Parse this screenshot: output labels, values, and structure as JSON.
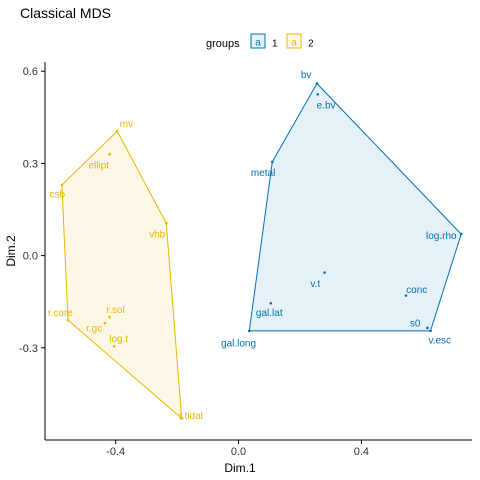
{
  "chart_data": {
    "type": "scatter",
    "title": "Classical MDS",
    "xlabel": "Dim.1",
    "ylabel": "Dim.2",
    "xlim": [
      -0.63,
      0.76
    ],
    "ylim": [
      -0.6,
      0.63
    ],
    "x_ticks": [
      -0.4,
      0.0,
      0.4
    ],
    "y_ticks": [
      -0.3,
      0.0,
      0.3,
      0.6
    ],
    "x_tick_labels": [
      "-0.4",
      "0.0",
      "0.4"
    ],
    "y_tick_labels": [
      "-0.3",
      "0.0",
      "0.3",
      "0.6"
    ],
    "grid": false,
    "legend": {
      "title": "groups",
      "placement": "top",
      "glyph": "a",
      "entries": [
        "1",
        "2"
      ]
    },
    "series": [
      {
        "name": "1",
        "color": "#0072B2",
        "fill": "#0072B2",
        "points": [
          {
            "label": "bv",
            "x": 0.255,
            "y": 0.56,
            "lx": 0.22,
            "ly": 0.59
          },
          {
            "label": "e.bv",
            "x": 0.258,
            "y": 0.525,
            "lx": 0.285,
            "ly": 0.49
          },
          {
            "label": "metal",
            "x": 0.11,
            "y": 0.305,
            "lx": 0.08,
            "ly": 0.27
          },
          {
            "label": "log.rho",
            "x": 0.725,
            "y": 0.07,
            "lx": 0.66,
            "ly": 0.065
          },
          {
            "label": "v.t",
            "x": 0.28,
            "y": -0.055,
            "lx": 0.25,
            "ly": -0.09
          },
          {
            "label": "conc",
            "x": 0.545,
            "y": -0.13,
            "lx": 0.58,
            "ly": -0.11
          },
          {
            "label": "gal.lat",
            "x": 0.105,
            "y": -0.155,
            "lx": 0.1,
            "ly": -0.185
          },
          {
            "label": "s0",
            "x": 0.615,
            "y": -0.235,
            "lx": 0.575,
            "ly": -0.22
          },
          {
            "label": "v.esc",
            "x": 0.625,
            "y": -0.245,
            "lx": 0.655,
            "ly": -0.275
          },
          {
            "label": "gal.long",
            "x": 0.035,
            "y": -0.245,
            "lx": 0.0,
            "ly": -0.285
          }
        ],
        "hull": [
          [
            0.255,
            0.56
          ],
          [
            0.725,
            0.07
          ],
          [
            0.625,
            -0.245
          ],
          [
            0.035,
            -0.245
          ],
          [
            0.11,
            0.305
          ]
        ]
      },
      {
        "name": "2",
        "color": "#E7B800",
        "fill": "#E7B800",
        "points": [
          {
            "label": "mv",
            "x": -0.395,
            "y": 0.405,
            "lx": -0.365,
            "ly": 0.43
          },
          {
            "label": "ellipt",
            "x": -0.42,
            "y": 0.33,
            "lx": -0.455,
            "ly": 0.295
          },
          {
            "label": "csb",
            "x": -0.575,
            "y": 0.23,
            "lx": -0.59,
            "ly": 0.2
          },
          {
            "label": "vhb",
            "x": -0.235,
            "y": 0.105,
            "lx": -0.265,
            "ly": 0.07
          },
          {
            "label": "r.sol",
            "x": -0.42,
            "y": -0.2,
            "lx": -0.4,
            "ly": -0.175
          },
          {
            "label": "r.core",
            "x": -0.555,
            "y": -0.21,
            "lx": -0.58,
            "ly": -0.185
          },
          {
            "label": "r.gc",
            "x": -0.435,
            "y": -0.22,
            "lx": -0.47,
            "ly": -0.235
          },
          {
            "label": "log.t",
            "x": -0.405,
            "y": -0.295,
            "lx": -0.39,
            "ly": -0.27
          },
          {
            "label": "r.tidal",
            "x": -0.185,
            "y": -0.53,
            "lx": -0.155,
            "ly": -0.52
          }
        ],
        "hull": [
          [
            -0.395,
            0.405
          ],
          [
            -0.235,
            0.105
          ],
          [
            -0.185,
            -0.53
          ],
          [
            -0.555,
            -0.21
          ],
          [
            -0.575,
            0.23
          ]
        ]
      }
    ]
  }
}
